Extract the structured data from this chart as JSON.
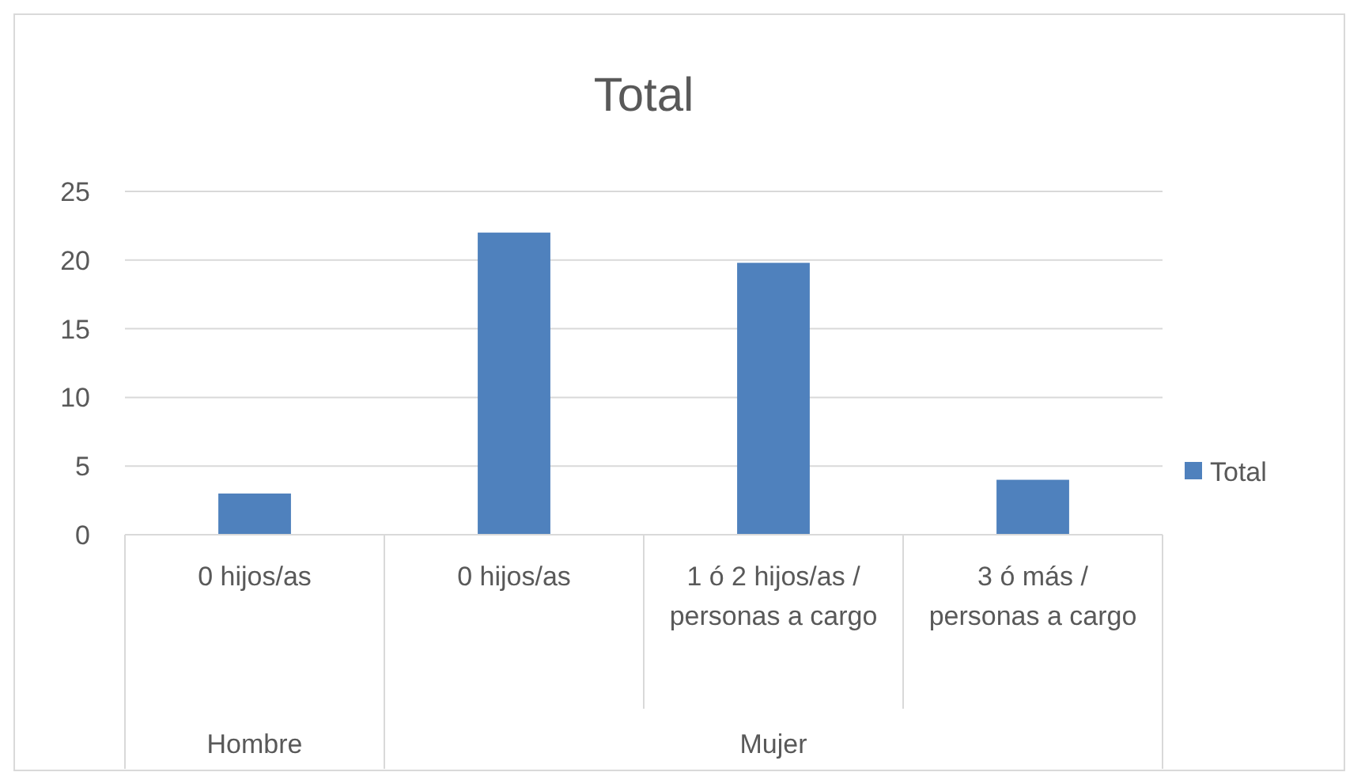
{
  "chart_data": {
    "type": "bar",
    "title": "Total",
    "categories": [
      "0 hijos/as",
      "0 hijos/as",
      "1 ó 2  hijos/as / personas a cargo",
      "3 ó más / personas a cargo"
    ],
    "series": [
      {
        "name": "Total",
        "color": "#4f81bd",
        "values": [
          3,
          22,
          19.8,
          4
        ]
      }
    ],
    "ylim": [
      0,
      25
    ],
    "yticks": [
      0,
      5,
      10,
      15,
      20,
      25
    ],
    "grid": "y",
    "legend": "right",
    "annotations": [
      "Hombre",
      "Mujer"
    ]
  }
}
